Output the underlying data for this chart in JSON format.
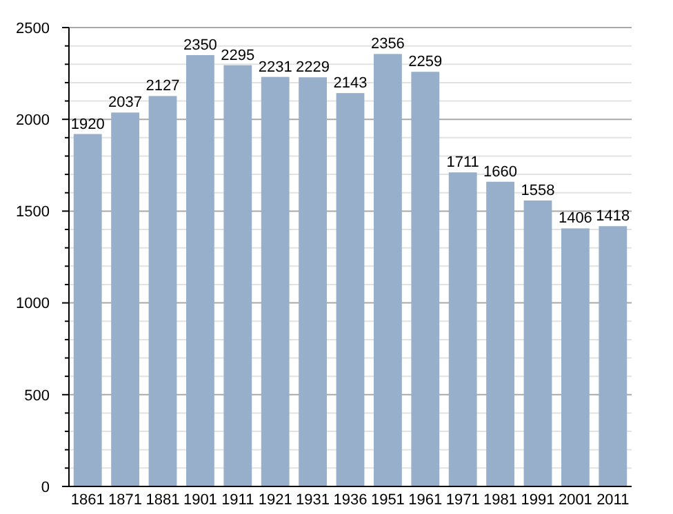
{
  "chart_data": {
    "type": "bar",
    "categories": [
      "1861",
      "1871",
      "1881",
      "1901",
      "1911",
      "1921",
      "1931",
      "1936",
      "1951",
      "1961",
      "1971",
      "1981",
      "1991",
      "2001",
      "2011"
    ],
    "values": [
      1920,
      2037,
      2127,
      2350,
      2295,
      2231,
      2229,
      2143,
      2356,
      2259,
      1711,
      1660,
      1558,
      1406,
      1418
    ],
    "color": "#97afcb",
    "ylim": [
      0,
      2500
    ],
    "yticks": [
      0,
      {
        "value": 100,
        "label": null
      },
      {
        "value": 200,
        "label": null
      },
      {
        "value": 300,
        "label": null
      },
      {
        "value": 400,
        "label": null
      },
      500,
      {
        "value": 600,
        "label": null
      },
      {
        "value": 700,
        "label": null
      },
      {
        "value": 800,
        "label": null
      },
      {
        "value": 900,
        "label": null
      },
      1000,
      {
        "value": 1100,
        "label": null
      },
      {
        "value": 1200,
        "label": null
      },
      {
        "value": 1300,
        "label": null
      },
      {
        "value": 1400,
        "label": null
      },
      1500,
      {
        "value": 1600,
        "label": null
      },
      {
        "value": 1700,
        "label": null
      },
      {
        "value": 1800,
        "label": null
      },
      {
        "value": 1900,
        "label": null
      },
      2000,
      {
        "value": 2100,
        "label": null
      },
      {
        "value": 2200,
        "label": null
      },
      {
        "value": 2300,
        "label": null
      },
      {
        "value": 2400,
        "label": null
      },
      2500
    ],
    "grid": "y",
    "data_labels": true
  }
}
